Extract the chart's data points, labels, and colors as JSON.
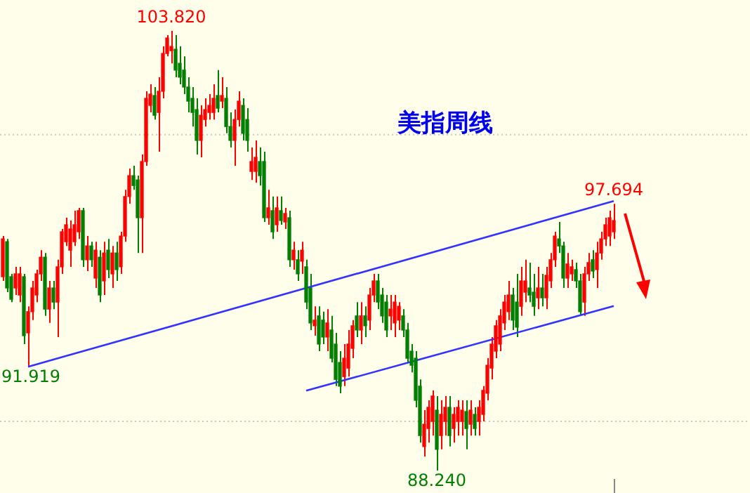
{
  "chart_data": {
    "type": "candlestick",
    "title": "美指周线",
    "categories": [
      null,
      null,
      null,
      null,
      null,
      null,
      null,
      null,
      null,
      null,
      null,
      null,
      null,
      null,
      null,
      null,
      null,
      null,
      null,
      null,
      null,
      null,
      null,
      null,
      null,
      null,
      null,
      null,
      null,
      null,
      null,
      null,
      null,
      null,
      null,
      null,
      null,
      null,
      null,
      null,
      null,
      null,
      null,
      null,
      null,
      null,
      null,
      null,
      null,
      null,
      null,
      null,
      null,
      null,
      null,
      null,
      null,
      null,
      null,
      null,
      null,
      null,
      null,
      null,
      null,
      null,
      null,
      null,
      null,
      null,
      null,
      null,
      null,
      null,
      null,
      null,
      null,
      null,
      null,
      null,
      null,
      null,
      null,
      null,
      null,
      null,
      null,
      null,
      null,
      null,
      null,
      null,
      null,
      null,
      null,
      null,
      null,
      null,
      null,
      null,
      null,
      null,
      null,
      null,
      null,
      null,
      null,
      null,
      null,
      null,
      null,
      null,
      null,
      null,
      null,
      null,
      null,
      null,
      null,
      null,
      null,
      null,
      null,
      null,
      null,
      null,
      null,
      null,
      null,
      null,
      null,
      null,
      null,
      null,
      null,
      null,
      null,
      null,
      null,
      null,
      null,
      null,
      null,
      null,
      null,
      null
    ],
    "ohlc": [
      [
        95.11,
        96.55,
        94.96,
        96.45
      ],
      [
        96.35,
        96.45,
        94.56,
        94.71
      ],
      [
        95.11,
        95.21,
        94.21,
        94.31
      ],
      [
        94.71,
        95.46,
        94.46,
        95.21
      ],
      [
        94.46,
        95.46,
        94.21,
        95.21
      ],
      [
        95.11,
        95.21,
        92.72,
        93.02
      ],
      [
        93.12,
        94.06,
        91.919,
        93.87
      ],
      [
        93.87,
        94.96,
        93.57,
        94.71
      ],
      [
        94.46,
        95.36,
        94.21,
        95.21
      ],
      [
        95.21,
        96.05,
        94.96,
        95.8
      ],
      [
        95.8,
        95.95,
        93.72,
        93.96
      ],
      [
        93.96,
        94.96,
        93.47,
        94.71
      ],
      [
        94.71,
        94.96,
        93.96,
        94.21
      ],
      [
        94.21,
        95.71,
        92.97,
        95.46
      ],
      [
        95.46,
        96.8,
        95.21,
        96.7
      ],
      [
        96.35,
        97.2,
        96.2,
        96.95
      ],
      [
        96.05,
        97.1,
        95.46,
        96.8
      ],
      [
        96.35,
        97.45,
        96.2,
        96.95
      ],
      [
        96.7,
        97.55,
        96.45,
        97.45
      ],
      [
        97.45,
        97.55,
        95.46,
        95.71
      ],
      [
        95.71,
        96.55,
        95.31,
        96.2
      ],
      [
        96.2,
        96.35,
        95.46,
        95.71
      ],
      [
        95.06,
        96.35,
        94.71,
        96.05
      ],
      [
        95.8,
        96.05,
        94.21,
        94.46
      ],
      [
        94.96,
        96.35,
        94.46,
        95.95
      ],
      [
        96.05,
        96.45,
        95.06,
        95.36
      ],
      [
        95.21,
        96.2,
        94.71,
        95.95
      ],
      [
        95.95,
        96.35,
        94.96,
        95.36
      ],
      [
        95.46,
        96.7,
        95.21,
        96.55
      ],
      [
        96.55,
        98.19,
        96.35,
        97.95
      ],
      [
        97.95,
        98.94,
        97.7,
        98.69
      ],
      [
        98.69,
        99.04,
        98.19,
        98.34
      ],
      [
        98.54,
        98.69,
        95.95,
        97.2
      ],
      [
        97.2,
        99.44,
        95.95,
        99.19
      ],
      [
        99.19,
        101.68,
        99.04,
        101.43
      ],
      [
        101.18,
        101.93,
        100.93,
        101.58
      ],
      [
        101.53,
        101.83,
        100.68,
        100.83
      ],
      [
        100.93,
        102.18,
        99.54,
        101.68
      ],
      [
        101.68,
        103.27,
        101.43,
        103.02
      ],
      [
        103.02,
        103.67,
        102.92,
        103.57
      ],
      [
        103.12,
        103.82,
        102.67,
        103.27
      ],
      [
        103.17,
        103.67,
        102.18,
        102.43
      ],
      [
        102.67,
        103.27,
        101.93,
        102.18
      ],
      [
        102.43,
        102.92,
        101.58,
        101.83
      ],
      [
        101.83,
        102.18,
        100.93,
        101.33
      ],
      [
        101.43,
        101.83,
        100.43,
        100.93
      ],
      [
        101.03,
        101.43,
        99.44,
        99.94
      ],
      [
        99.94,
        101.18,
        99.34,
        100.83
      ],
      [
        100.68,
        101.43,
        100.43,
        101.03
      ],
      [
        100.93,
        101.58,
        100.68,
        101.18
      ],
      [
        100.93,
        101.93,
        100.68,
        101.43
      ],
      [
        101.53,
        102.43,
        100.93,
        101.08
      ],
      [
        101.33,
        102.18,
        101.08,
        101.53
      ],
      [
        101.43,
        101.83,
        100.19,
        100.43
      ],
      [
        100.43,
        100.93,
        99.69,
        99.94
      ],
      [
        99.94,
        101.03,
        99.04,
        100.68
      ],
      [
        100.68,
        101.68,
        100.43,
        101.33
      ],
      [
        101.18,
        101.43,
        99.94,
        100.19
      ],
      [
        100.68,
        101.08,
        99.54,
        99.94
      ],
      [
        98.84,
        99.69,
        98.54,
        99.19
      ],
      [
        98.84,
        99.94,
        98.44,
        99.34
      ],
      [
        99.19,
        99.69,
        98.34,
        98.69
      ],
      [
        99.19,
        99.54,
        97.05,
        97.2
      ],
      [
        97.2,
        98.19,
        96.95,
        97.55
      ],
      [
        97.45,
        97.95,
        96.45,
        96.7
      ],
      [
        96.95,
        97.95,
        96.7,
        97.55
      ],
      [
        97.45,
        97.95,
        96.95,
        97.1
      ],
      [
        97.05,
        97.55,
        96.8,
        97.35
      ],
      [
        97.2,
        97.45,
        95.46,
        95.71
      ],
      [
        95.71,
        96.35,
        95.36,
        96.05
      ],
      [
        95.71,
        96.05,
        94.96,
        95.21
      ],
      [
        95.66,
        96.35,
        95.21,
        96.05
      ],
      [
        95.46,
        95.71,
        93.96,
        94.21
      ],
      [
        94.71,
        95.21,
        93.22,
        93.47
      ],
      [
        93.37,
        94.06,
        93.02,
        93.57
      ],
      [
        93.72,
        94.06,
        92.47,
        92.72
      ],
      [
        93.57,
        93.87,
        92.72,
        92.97
      ],
      [
        92.97,
        93.96,
        92.47,
        93.47
      ],
      [
        93.22,
        93.72,
        92.07,
        92.22
      ],
      [
        92.72,
        93.12,
        91.23,
        91.47
      ],
      [
        92.07,
        92.47,
        90.98,
        91.23
      ],
      [
        91.57,
        92.72,
        91.23,
        92.22
      ],
      [
        91.87,
        93.22,
        91.57,
        92.72
      ],
      [
        92.57,
        93.57,
        92.22,
        93.37
      ],
      [
        93.72,
        94.21,
        92.97,
        93.22
      ],
      [
        93.22,
        94.21,
        92.72,
        93.72
      ],
      [
        93.72,
        94.06,
        92.97,
        93.37
      ],
      [
        93.57,
        94.71,
        93.22,
        94.46
      ],
      [
        94.46,
        95.21,
        94.21,
        94.96
      ],
      [
        94.96,
        95.21,
        93.96,
        94.21
      ],
      [
        94.46,
        94.71,
        93.47,
        93.72
      ],
      [
        94.21,
        94.46,
        92.97,
        93.22
      ],
      [
        93.72,
        94.46,
        93.22,
        93.96
      ],
      [
        93.47,
        94.46,
        92.97,
        94.21
      ],
      [
        93.57,
        94.21,
        93.22,
        94.06
      ],
      [
        93.72,
        93.96,
        92.97,
        93.22
      ],
      [
        93.22,
        93.47,
        92.07,
        92.22
      ],
      [
        92.47,
        92.72,
        91.72,
        91.97
      ],
      [
        92.22,
        92.47,
        90.48,
        90.73
      ],
      [
        91.23,
        91.47,
        89.23,
        89.48
      ],
      [
        89.09,
        90.38,
        88.74,
        89.88
      ],
      [
        89.73,
        90.73,
        89.23,
        90.48
      ],
      [
        89.98,
        91.08,
        89.48,
        90.88
      ],
      [
        90.38,
        90.88,
        88.24,
        88.99
      ],
      [
        89.48,
        90.73,
        88.99,
        90.23
      ],
      [
        89.98,
        90.88,
        89.48,
        90.48
      ],
      [
        90.48,
        90.88,
        89.09,
        89.48
      ],
      [
        89.73,
        90.48,
        89.23,
        90.23
      ],
      [
        89.98,
        90.73,
        89.48,
        90.48
      ],
      [
        89.98,
        90.73,
        89.48,
        90.38
      ],
      [
        90.33,
        90.73,
        88.99,
        89.73
      ],
      [
        89.88,
        90.73,
        89.48,
        90.38
      ],
      [
        90.23,
        90.48,
        89.48,
        89.73
      ],
      [
        89.98,
        90.73,
        89.48,
        90.48
      ],
      [
        90.23,
        91.23,
        89.98,
        91.08
      ],
      [
        90.98,
        92.22,
        90.73,
        91.97
      ],
      [
        91.87,
        92.97,
        91.47,
        92.72
      ],
      [
        92.47,
        93.57,
        92.22,
        93.37
      ],
      [
        92.72,
        93.96,
        92.47,
        93.72
      ],
      [
        93.47,
        94.46,
        93.22,
        94.21
      ],
      [
        93.87,
        94.96,
        93.57,
        94.46
      ],
      [
        94.46,
        94.71,
        93.22,
        93.57
      ],
      [
        94.21,
        95.21,
        92.97,
        93.32
      ],
      [
        94.06,
        95.46,
        93.72,
        94.96
      ],
      [
        94.56,
        95.71,
        94.21,
        94.96
      ],
      [
        94.71,
        95.61,
        94.21,
        94.46
      ],
      [
        94.56,
        95.21,
        93.72,
        94.06
      ],
      [
        94.36,
        95.46,
        93.96,
        94.71
      ],
      [
        94.71,
        95.21,
        94.06,
        94.36
      ],
      [
        94.36,
        95.46,
        93.96,
        95.16
      ],
      [
        94.96,
        95.95,
        94.71,
        95.71
      ],
      [
        95.71,
        96.7,
        95.46,
        96.55
      ],
      [
        96.45,
        97.05,
        95.95,
        96.2
      ],
      [
        96.2,
        96.35,
        94.71,
        95.06
      ],
      [
        95.06,
        95.95,
        94.71,
        95.56
      ],
      [
        95.21,
        95.71,
        94.96,
        95.46
      ],
      [
        95.36,
        95.61,
        94.71,
        94.96
      ],
      [
        94.96,
        95.21,
        93.72,
        93.87
      ],
      [
        94.21,
        95.46,
        93.72,
        95.21
      ],
      [
        95.21,
        95.95,
        94.96,
        95.61
      ],
      [
        95.71,
        96.05,
        95.06,
        95.31
      ],
      [
        95.36,
        96.35,
        94.71,
        95.95
      ],
      [
        95.95,
        96.7,
        95.71,
        96.45
      ],
      [
        96.45,
        97.2,
        96.2,
        96.95
      ],
      [
        96.55,
        97.45,
        96.2,
        97.2
      ],
      [
        96.7,
        97.694,
        96.45,
        97.1
      ]
    ],
    "colors": [
      "#ff0000",
      "#007f00",
      "#007f00",
      "#ff0000",
      "#ff0000",
      "#007f00",
      "#ff0000",
      "#ff0000",
      "#ff0000",
      "#ff0000",
      "#007f00",
      "#ff0000",
      "#007f00",
      "#ff0000",
      "#ff0000",
      "#ff0000",
      "#ff0000",
      "#ff0000",
      "#ff0000",
      "#007f00",
      "#ff0000",
      "#007f00",
      "#ff0000",
      "#007f00",
      "#ff0000",
      "#007f00",
      "#ff0000",
      "#007f00",
      "#ff0000",
      "#ff0000",
      "#ff0000",
      "#007f00",
      "#007f00",
      "#ff0000",
      "#ff0000",
      "#ff0000",
      "#007f00",
      "#ff0000",
      "#ff0000",
      "#ff0000",
      "#ff0000",
      "#007f00",
      "#007f00",
      "#007f00",
      "#007f00",
      "#007f00",
      "#007f00",
      "#ff0000",
      "#ff0000",
      "#ff0000",
      "#ff0000",
      "#007f00",
      "#ff0000",
      "#007f00",
      "#007f00",
      "#ff0000",
      "#ff0000",
      "#007f00",
      "#007f00",
      "#ff0000",
      "#ff0000",
      "#007f00",
      "#007f00",
      "#ff0000",
      "#007f00",
      "#ff0000",
      "#007f00",
      "#ff0000",
      "#007f00",
      "#ff0000",
      "#007f00",
      "#ff0000",
      "#007f00",
      "#007f00",
      "#ff0000",
      "#007f00",
      "#007f00",
      "#ff0000",
      "#007f00",
      "#007f00",
      "#007f00",
      "#ff0000",
      "#ff0000",
      "#ff0000",
      "#007f00",
      "#ff0000",
      "#007f00",
      "#ff0000",
      "#ff0000",
      "#007f00",
      "#007f00",
      "#007f00",
      "#ff0000",
      "#ff0000",
      "#ff0000",
      "#007f00",
      "#007f00",
      "#007f00",
      "#007f00",
      "#007f00",
      "#ff0000",
      "#ff0000",
      "#ff0000",
      "#007f00",
      "#ff0000",
      "#ff0000",
      "#007f00",
      "#ff0000",
      "#ff0000",
      "#ff0000",
      "#007f00",
      "#ff0000",
      "#007f00",
      "#ff0000",
      "#ff0000",
      "#ff0000",
      "#ff0000",
      "#ff0000",
      "#ff0000",
      "#ff0000",
      "#ff0000",
      "#007f00",
      "#007f00",
      "#ff0000",
      "#ff0000",
      "#007f00",
      "#007f00",
      "#ff0000",
      "#007f00",
      "#ff0000",
      "#ff0000",
      "#ff0000",
      "#007f00",
      "#007f00",
      "#ff0000",
      "#ff0000",
      "#007f00",
      "#007f00",
      "#ff0000",
      "#ff0000",
      "#007f00",
      "#ff0000",
      "#ff0000",
      "#ff0000",
      "#ff0000",
      "#ff0000"
    ],
    "series": [
      {
        "type": "line",
        "color": "#3333ff",
        "values": [
          null,
          null,
          null,
          null,
          null,
          null,
          91.92,
          null,
          null,
          null,
          null,
          null,
          null,
          null,
          null,
          null,
          null,
          null,
          null,
          null,
          null,
          null,
          null,
          null,
          null,
          null,
          null,
          null,
          null,
          null,
          null,
          null,
          null,
          null,
          null,
          null,
          null,
          null,
          null,
          null,
          null,
          null,
          null,
          null,
          null,
          null,
          null,
          null,
          null,
          null,
          null,
          null,
          null,
          null,
          null,
          null,
          null,
          null,
          null,
          null,
          null,
          null,
          null,
          null,
          null,
          null,
          null,
          null,
          null,
          null,
          null,
          null,
          null,
          null,
          null,
          null,
          null,
          null,
          null,
          null,
          null,
          null,
          null,
          null,
          null,
          null,
          null,
          null,
          null,
          null,
          null,
          null,
          null,
          null,
          null,
          null,
          null,
          null,
          null,
          null,
          null,
          null,
          null,
          null,
          null,
          null,
          null,
          null,
          null,
          null,
          null,
          null,
          null,
          null,
          null,
          null,
          null,
          null,
          null,
          null,
          null,
          null,
          null,
          null,
          null,
          null,
          null,
          null,
          null,
          null,
          null,
          null,
          null,
          null,
          null,
          null,
          null,
          null,
          null,
          null,
          null,
          null,
          null,
          null,
          null,
          97.79
        ]
      },
      {
        "type": "line",
        "color": "#3333ff",
        "values": [
          null,
          null,
          null,
          null,
          null,
          null,
          null,
          null,
          null,
          null,
          null,
          null,
          null,
          null,
          null,
          null,
          null,
          null,
          null,
          null,
          null,
          null,
          null,
          null,
          null,
          null,
          null,
          null,
          null,
          null,
          null,
          null,
          null,
          null,
          null,
          null,
          null,
          null,
          null,
          null,
          null,
          null,
          null,
          null,
          null,
          null,
          null,
          null,
          null,
          null,
          null,
          null,
          null,
          null,
          null,
          null,
          null,
          null,
          null,
          null,
          null,
          null,
          null,
          null,
          null,
          null,
          null,
          null,
          null,
          null,
          null,
          null,
          91.07,
          null,
          null,
          null,
          null,
          null,
          null,
          null,
          null,
          null,
          null,
          null,
          null,
          null,
          null,
          null,
          null,
          null,
          null,
          null,
          null,
          null,
          null,
          null,
          null,
          null,
          null,
          null,
          null,
          null,
          null,
          null,
          null,
          null,
          null,
          null,
          null,
          null,
          null,
          null,
          null,
          null,
          null,
          null,
          null,
          null,
          null,
          null,
          null,
          null,
          null,
          null,
          null,
          null,
          null,
          null,
          null,
          null,
          null,
          null,
          null,
          null,
          null,
          null,
          null,
          null,
          null,
          null,
          null,
          null,
          null,
          null,
          null,
          94.07
        ]
      }
    ],
    "ref_lines": [
      {
        "axis": "y",
        "value": 100.14,
        "color": "#c8c8c8",
        "line_style": "dotted"
      },
      {
        "axis": "y",
        "value": 89.98,
        "color": "#c8c8c8",
        "line_style": "dotted"
      }
    ],
    "annotations": [
      {
        "text": "103.820",
        "y": 103.82
      },
      {
        "text": "97.694",
        "y": 97.694
      },
      {
        "text": "91.919",
        "y": 91.919
      },
      {
        "text": "88.240",
        "y": 88.24
      }
    ]
  }
}
